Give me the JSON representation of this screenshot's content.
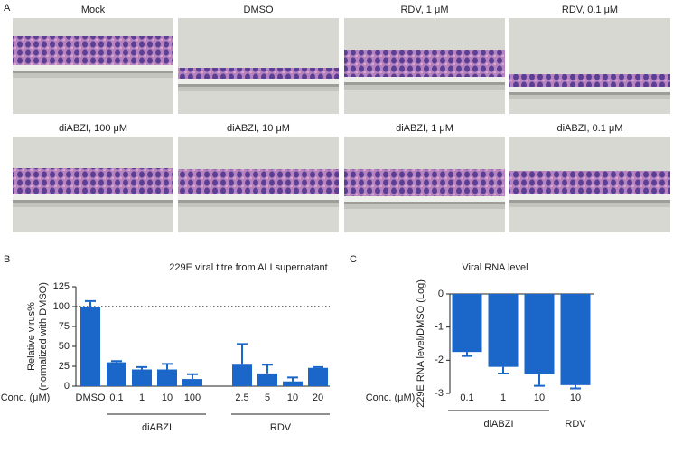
{
  "panels": [
    "A",
    "B",
    "C"
  ],
  "images": [
    {
      "label": "Mock"
    },
    {
      "label": "DMSO"
    },
    {
      "label": "RDV, 1 μM"
    },
    {
      "label": "RDV, 0.1 μM"
    },
    {
      "label": "diABZI, 100 μM"
    },
    {
      "label": "diABZI, 10 μM"
    },
    {
      "label": "diABZI, 1 μM"
    },
    {
      "label": "diABZI, 0.1 μM"
    }
  ],
  "chart_data": [
    {
      "type": "bar",
      "title": "229E viral titre from ALI supernatant",
      "ylabel": [
        "Relative virus%",
        "(normalized with DMSO)"
      ],
      "xlabel": "Conc. (μM)",
      "categories": [
        "DMSO",
        "0.1",
        "1",
        "10",
        "100",
        "2.5",
        "5",
        "10",
        "20"
      ],
      "values": [
        100,
        30,
        21,
        21,
        9,
        27,
        16,
        6,
        23
      ],
      "errors": [
        7,
        1.5,
        3,
        7,
        6,
        26,
        11,
        5,
        1
      ],
      "groups": [
        {
          "name": "diABZI"
        },
        {
          "name": "RDV"
        }
      ],
      "refline": 100,
      "color": "#1a66c9",
      "ylim": [
        0,
        125
      ],
      "yticks": [
        0,
        25,
        50,
        75,
        100,
        125
      ]
    },
    {
      "type": "bar",
      "title": "Viral RNA level",
      "ylabel": [
        "229E RNA level/DMSO (Log)"
      ],
      "xlabel": "Conc. (μM)",
      "categories": [
        "0.1",
        "1",
        "10",
        "10"
      ],
      "values": [
        -1.75,
        -2.2,
        -2.42,
        -2.75
      ],
      "errors": [
        0.12,
        0.2,
        0.35,
        0.1
      ],
      "groups": [
        {
          "name": "diABZI"
        },
        {
          "name": "RDV"
        }
      ],
      "color": "#1a66c9",
      "ylim": [
        -3,
        0
      ],
      "yticks": [
        0,
        -1,
        -2,
        -3
      ]
    }
  ]
}
